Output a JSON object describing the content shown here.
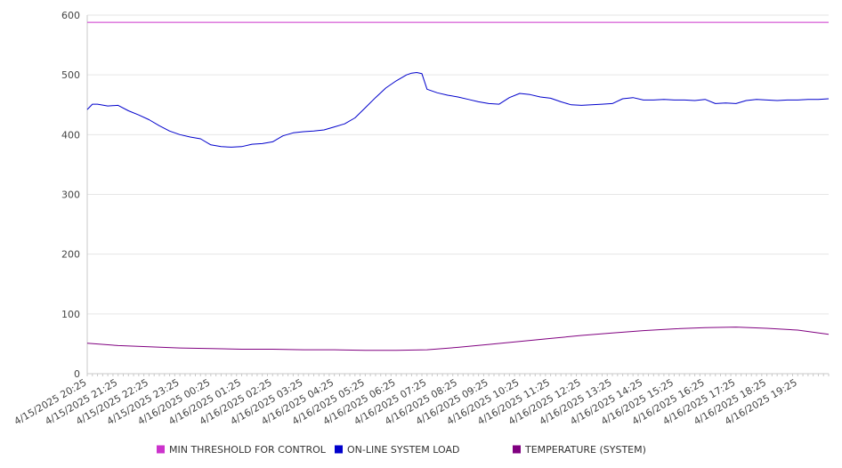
{
  "chart_data": {
    "type": "line",
    "title": "",
    "xlabel": "",
    "ylabel": "",
    "ylim": [
      0,
      600
    ],
    "yticks": [
      0,
      100,
      200,
      300,
      400,
      500,
      600
    ],
    "grid": true,
    "legend_position": "bottom",
    "x_tick_labels": [
      "4/15/2025 20:25",
      "4/15/2025 21:25",
      "4/15/2025 22:25",
      "4/15/2025 23:25",
      "4/16/2025 00:25",
      "4/16/2025 01:25",
      "4/16/2025 02:25",
      "4/16/2025 03:25",
      "4/16/2025 04:25",
      "4/16/2025 05:25",
      "4/16/2025 06:25",
      "4/16/2025 07:25",
      "4/16/2025 08:25",
      "4/16/2025 09:25",
      "4/16/2025 10:25",
      "4/16/2025 11:25",
      "4/16/2025 12:25",
      "4/16/2025 13:25",
      "4/16/2025 14:25",
      "4/16/2025 15:25",
      "4/16/2025 16:25",
      "4/16/2025 17:25",
      "4/16/2025 18:25",
      "4/16/2025 19:25"
    ],
    "x_range": [
      "4/15/2025 20:25",
      "4/16/2025 20:25"
    ],
    "series": [
      {
        "name": "MIN THRESHOLD FOR CONTROL",
        "color": "#cc33cc",
        "x": [
          "4/15/2025 20:25",
          "4/16/2025 20:25"
        ],
        "values": [
          588,
          588
        ]
      },
      {
        "name": "ON-LINE SYSTEM LOAD",
        "color": "#0000cc",
        "x": [
          "4/15/2025 20:25",
          "4/15/2025 20:35",
          "4/15/2025 20:45",
          "4/15/2025 21:05",
          "4/15/2025 21:25",
          "4/15/2025 21:45",
          "4/15/2025 22:05",
          "4/15/2025 22:25",
          "4/15/2025 22:45",
          "4/15/2025 23:05",
          "4/15/2025 23:25",
          "4/15/2025 23:45",
          "4/16/2025 00:05",
          "4/16/2025 00:25",
          "4/16/2025 00:45",
          "4/16/2025 01:05",
          "4/16/2025 01:25",
          "4/16/2025 01:45",
          "4/16/2025 02:05",
          "4/16/2025 02:25",
          "4/16/2025 02:45",
          "4/16/2025 03:05",
          "4/16/2025 03:25",
          "4/16/2025 03:45",
          "4/16/2025 04:05",
          "4/16/2025 04:25",
          "4/16/2025 04:45",
          "4/16/2025 05:05",
          "4/16/2025 05:25",
          "4/16/2025 05:45",
          "4/16/2025 06:05",
          "4/16/2025 06:25",
          "4/16/2025 06:45",
          "4/16/2025 06:55",
          "4/16/2025 07:05",
          "4/16/2025 07:15",
          "4/16/2025 07:25",
          "4/16/2025 07:45",
          "4/16/2025 08:05",
          "4/16/2025 08:25",
          "4/16/2025 08:45",
          "4/16/2025 09:05",
          "4/16/2025 09:25",
          "4/16/2025 09:45",
          "4/16/2025 10:05",
          "4/16/2025 10:25",
          "4/16/2025 10:45",
          "4/16/2025 11:05",
          "4/16/2025 11:25",
          "4/16/2025 11:45",
          "4/16/2025 12:05",
          "4/16/2025 12:25",
          "4/16/2025 12:45",
          "4/16/2025 13:05",
          "4/16/2025 13:25",
          "4/16/2025 13:45",
          "4/16/2025 14:05",
          "4/16/2025 14:25",
          "4/16/2025 14:45",
          "4/16/2025 15:05",
          "4/16/2025 15:25",
          "4/16/2025 15:45",
          "4/16/2025 16:05",
          "4/16/2025 16:25",
          "4/16/2025 16:45",
          "4/16/2025 17:05",
          "4/16/2025 17:25",
          "4/16/2025 17:45",
          "4/16/2025 18:05",
          "4/16/2025 18:25",
          "4/16/2025 18:45",
          "4/16/2025 19:05",
          "4/16/2025 19:25",
          "4/16/2025 19:45",
          "4/16/2025 20:05",
          "4/16/2025 20:25"
        ],
        "values": [
          442,
          451,
          451,
          448,
          449,
          440,
          433,
          425,
          415,
          406,
          400,
          396,
          393,
          383,
          380,
          379,
          380,
          384,
          385,
          388,
          398,
          403,
          405,
          406,
          408,
          413,
          418,
          428,
          445,
          462,
          478,
          490,
          500,
          503,
          504,
          502,
          476,
          470,
          466,
          463,
          459,
          455,
          452,
          451,
          462,
          469,
          467,
          463,
          461,
          455,
          450,
          449,
          450,
          451,
          452,
          460,
          462,
          458,
          458,
          459,
          458,
          458,
          457,
          459,
          452,
          453,
          452,
          457,
          459,
          458,
          457,
          458,
          458,
          459,
          459,
          460
        ]
      },
      {
        "name": "TEMPERATURE (SYSTEM)",
        "color": "#800080",
        "x": [
          "4/15/2025 20:25",
          "4/15/2025 21:25",
          "4/15/2025 22:25",
          "4/15/2025 23:25",
          "4/16/2025 00:25",
          "4/16/2025 01:25",
          "4/16/2025 02:25",
          "4/16/2025 03:25",
          "4/16/2025 04:25",
          "4/16/2025 05:25",
          "4/16/2025 06:25",
          "4/16/2025 07:25",
          "4/16/2025 08:25",
          "4/16/2025 09:25",
          "4/16/2025 10:25",
          "4/16/2025 11:25",
          "4/16/2025 12:25",
          "4/16/2025 13:25",
          "4/16/2025 14:25",
          "4/16/2025 15:25",
          "4/16/2025 16:25",
          "4/16/2025 17:25",
          "4/16/2025 18:25",
          "4/16/2025 19:25",
          "4/16/2025 20:25"
        ],
        "values": [
          51,
          47,
          45,
          43,
          42,
          41,
          41,
          40,
          40,
          39,
          39,
          40,
          44,
          49,
          54,
          59,
          64,
          68,
          72,
          75,
          77,
          78,
          76,
          73,
          66
        ]
      }
    ]
  }
}
